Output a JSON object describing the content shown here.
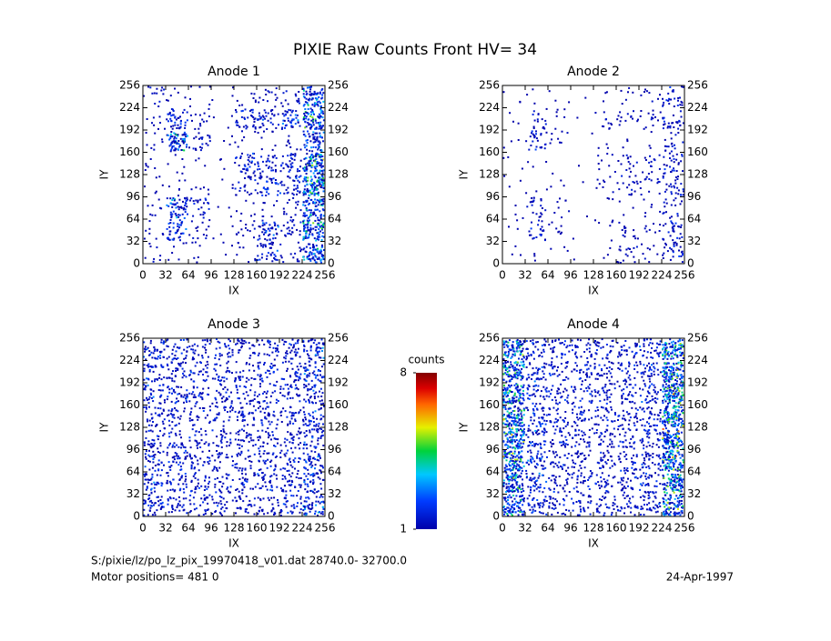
{
  "title": "PIXIE Raw Counts Front HV= 34",
  "footer": {
    "file": "S:/pixie/lz/po_lz_pix_19970418_v01.dat    28740.0- 32700.0",
    "motor": "Motor positions= 481 0",
    "date": "24-Apr-1997"
  },
  "colorbar": {
    "label": "counts",
    "clim": [
      1,
      8
    ],
    "ticks": [
      1,
      8
    ]
  },
  "chart_data": [
    {
      "type": "heatmap",
      "title": "Anode 1",
      "xlabel": "IX",
      "ylabel": "IY",
      "xlim": [
        0,
        256
      ],
      "ylim": [
        0,
        256
      ],
      "xticks": [
        0,
        32,
        64,
        96,
        128,
        160,
        192,
        224,
        256
      ],
      "yticks": [
        0,
        32,
        64,
        96,
        128,
        160,
        192,
        224,
        256
      ],
      "bins": [
        0,
        32,
        64,
        96,
        128,
        160,
        192,
        224,
        256
      ],
      "values": [
        [
          0.3,
          0.2,
          0.2,
          0.1,
          0.3,
          1.2,
          0.5,
          2.5
        ],
        [
          0.3,
          1.5,
          0.5,
          0.1,
          0.5,
          1.5,
          0.8,
          3
        ],
        [
          0.3,
          2,
          0.8,
          0.1,
          0.2,
          0.3,
          0.5,
          2.5
        ],
        [
          0.2,
          0.2,
          0.2,
          0.1,
          0.8,
          1.2,
          1.2,
          3.5
        ],
        [
          0.2,
          0.2,
          0.1,
          0.1,
          1.2,
          1,
          1.2,
          3.5
        ],
        [
          0.3,
          2.5,
          0.8,
          0.1,
          0.2,
          0.3,
          0.3,
          2
        ],
        [
          0.3,
          1.5,
          0.5,
          0.1,
          1.2,
          1.2,
          1.5,
          3
        ],
        [
          0.5,
          0.2,
          0.2,
          0.1,
          0.3,
          0.5,
          0.5,
          2.5
        ]
      ]
    },
    {
      "type": "heatmap",
      "title": "Anode 2",
      "xlabel": "IX",
      "ylabel": "IY",
      "xlim": [
        0,
        256
      ],
      "ylim": [
        0,
        256
      ],
      "xticks": [
        0,
        32,
        64,
        96,
        128,
        160,
        192,
        224,
        256
      ],
      "yticks": [
        0,
        32,
        64,
        96,
        128,
        160,
        192,
        224,
        256
      ],
      "bins": [
        0,
        32,
        64,
        96,
        128,
        160,
        192,
        224,
        256
      ],
      "values": [
        [
          0.1,
          0.1,
          0.1,
          0.05,
          0.1,
          0.6,
          0.3,
          1
        ],
        [
          0.1,
          0.8,
          0.3,
          0.05,
          0.2,
          0.5,
          0.3,
          1
        ],
        [
          0.1,
          0.8,
          0.3,
          0.05,
          0.1,
          0.1,
          0.2,
          0.6
        ],
        [
          0.1,
          0.1,
          0.1,
          0.05,
          0.3,
          0.6,
          0.5,
          1
        ],
        [
          0.1,
          0.1,
          0.05,
          0.05,
          0.3,
          0.5,
          0.5,
          1
        ],
        [
          0.1,
          1,
          0.3,
          0.05,
          0.1,
          0.1,
          0.1,
          0.6
        ],
        [
          0.1,
          0.6,
          0.2,
          0.05,
          0.4,
          0.5,
          0.5,
          1
        ],
        [
          0.1,
          0.1,
          0.1,
          0.05,
          0.1,
          0.2,
          0.3,
          1
        ]
      ]
    },
    {
      "type": "heatmap",
      "title": "Anode 3",
      "xlabel": "IX",
      "ylabel": "IY",
      "xlim": [
        0,
        256
      ],
      "ylim": [
        0,
        256
      ],
      "xticks": [
        0,
        32,
        64,
        96,
        128,
        160,
        192,
        224,
        256
      ],
      "yticks": [
        0,
        32,
        64,
        96,
        128,
        160,
        192,
        224,
        256
      ],
      "bins": [
        0,
        32,
        64,
        96,
        128,
        160,
        192,
        224,
        256
      ],
      "values": [
        [
          1.5,
          1,
          1,
          0.9,
          1,
          1,
          1.2,
          1.8
        ],
        [
          1.3,
          1.2,
          1,
          0.9,
          1,
          1.1,
          1.2,
          1.6
        ],
        [
          1.2,
          1.2,
          1,
          0.9,
          0.9,
          1,
          1,
          1.5
        ],
        [
          1.1,
          0.9,
          0.9,
          0.9,
          1,
          1,
          1,
          1.4
        ],
        [
          1.1,
          0.9,
          0.9,
          0.9,
          1.1,
          1,
          1,
          1.4
        ],
        [
          1.2,
          1.2,
          0.9,
          0.9,
          0.9,
          0.9,
          1,
          1.4
        ],
        [
          1.2,
          1.2,
          1,
          0.9,
          1,
          1.1,
          1.1,
          1.6
        ],
        [
          1.5,
          1.1,
          1,
          0.9,
          1,
          1,
          1.2,
          1.8
        ]
      ]
    },
    {
      "type": "heatmap",
      "title": "Anode 4",
      "xlabel": "IX",
      "ylabel": "IY",
      "xlim": [
        0,
        256
      ],
      "ylim": [
        0,
        256
      ],
      "xticks": [
        0,
        32,
        64,
        96,
        128,
        160,
        192,
        224,
        256
      ],
      "yticks": [
        0,
        32,
        64,
        96,
        128,
        160,
        192,
        224,
        256
      ],
      "bins": [
        0,
        32,
        64,
        96,
        128,
        160,
        192,
        224,
        256
      ],
      "values": [
        [
          3,
          1.3,
          1,
          1,
          1,
          1,
          1.2,
          3
        ],
        [
          3.2,
          1.4,
          1,
          1,
          1,
          1,
          1.2,
          3.5
        ],
        [
          3.4,
          1.4,
          1,
          1,
          1,
          1,
          1.2,
          3.6
        ],
        [
          3.5,
          1.4,
          1,
          1,
          1,
          1,
          1.2,
          3.8
        ],
        [
          3.5,
          1.3,
          1,
          1,
          1,
          1,
          1.2,
          4
        ],
        [
          3.4,
          1.3,
          1,
          1,
          1,
          1,
          1.2,
          4
        ],
        [
          3.2,
          1.3,
          1,
          1,
          1,
          1,
          1.2,
          3.6
        ],
        [
          3,
          1.3,
          1,
          1,
          1,
          1,
          1.2,
          3.2
        ]
      ]
    }
  ]
}
